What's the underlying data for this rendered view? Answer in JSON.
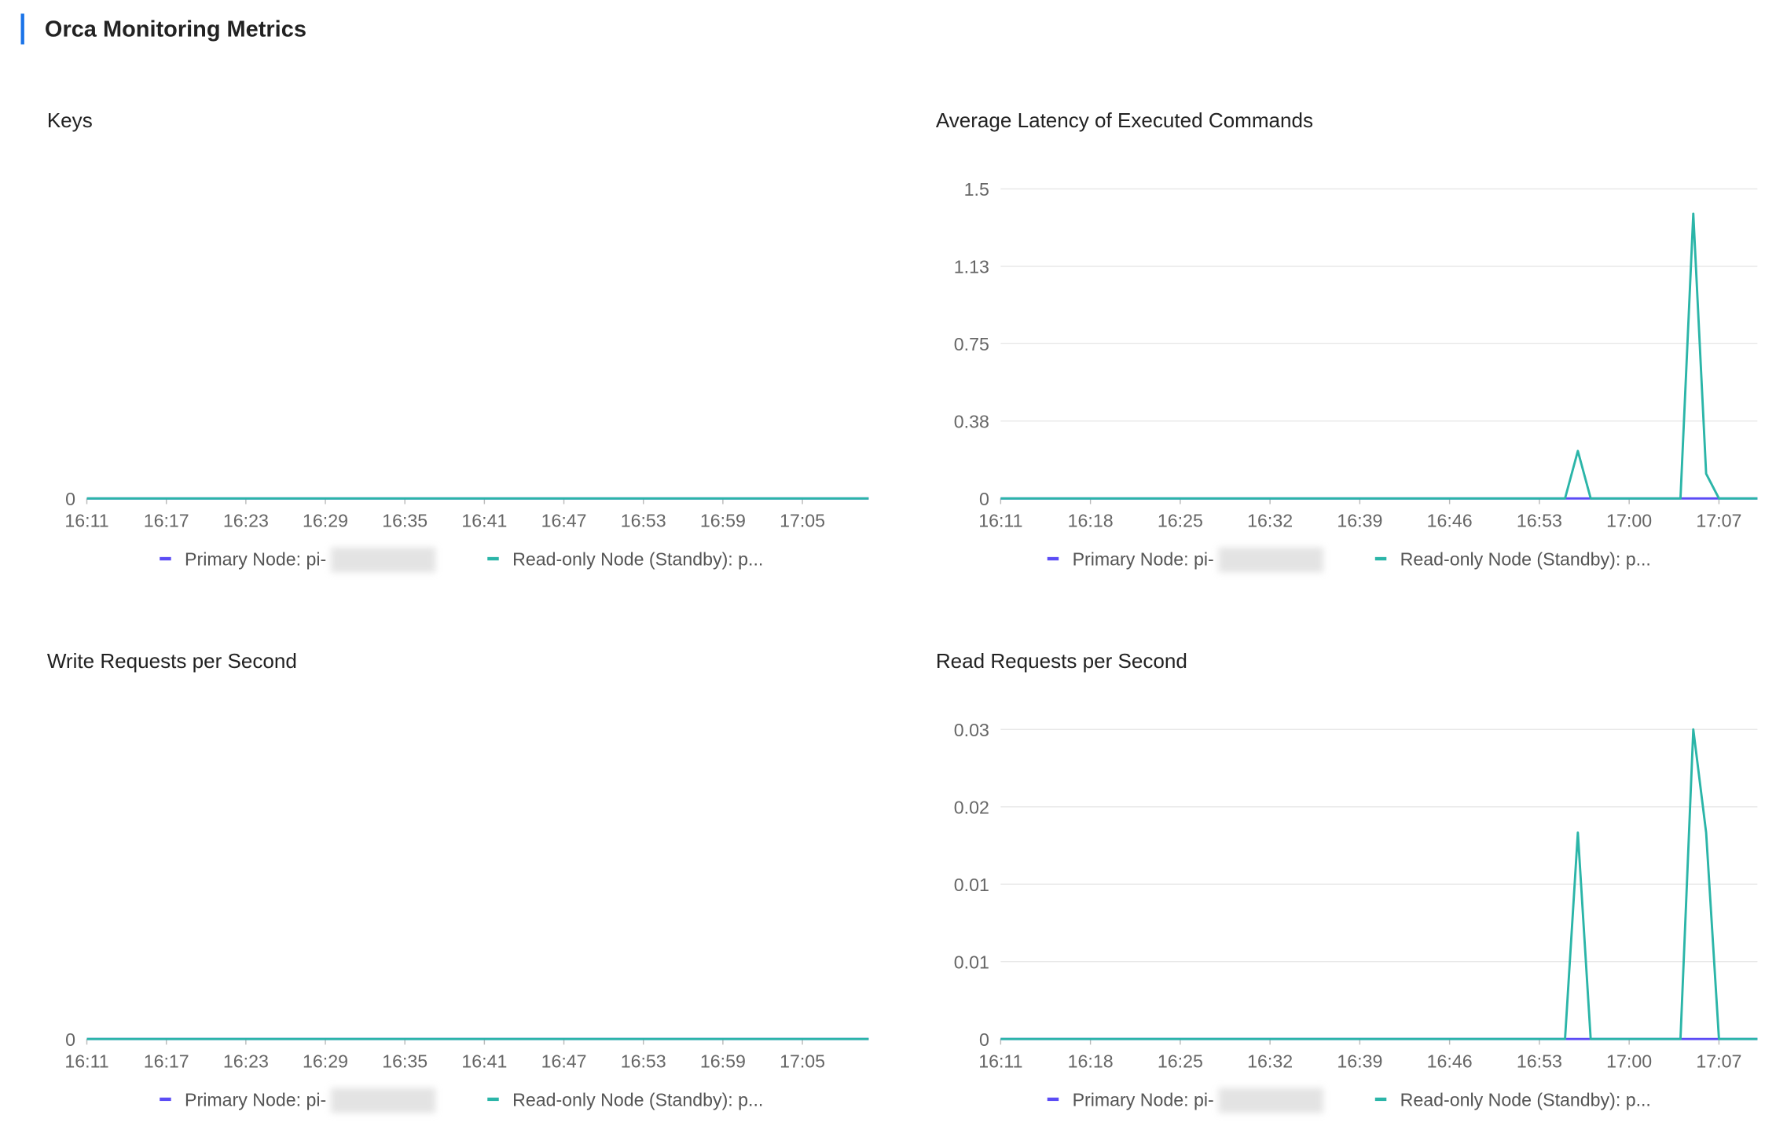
{
  "header": {
    "title": "Orca Monitoring Metrics"
  },
  "chart_data": [
    {
      "type": "line",
      "title": "Keys",
      "x": [
        "16:11",
        "16:12",
        "16:13",
        "16:14",
        "16:15",
        "16:16",
        "16:17",
        "16:18",
        "16:19",
        "16:20",
        "16:21",
        "16:22",
        "16:23",
        "16:24",
        "16:25",
        "16:26",
        "16:27",
        "16:28",
        "16:29",
        "16:30",
        "16:31",
        "16:32",
        "16:33",
        "16:34",
        "16:35",
        "16:36",
        "16:37",
        "16:38",
        "16:39",
        "16:40",
        "16:41",
        "16:42",
        "16:43",
        "16:44",
        "16:45",
        "16:46",
        "16:47",
        "16:48",
        "16:49",
        "16:50",
        "16:51",
        "16:52",
        "16:53",
        "16:54",
        "16:55",
        "16:56",
        "16:57",
        "16:58",
        "16:59",
        "17:00",
        "17:01",
        "17:02",
        "17:03",
        "17:04",
        "17:05",
        "17:06",
        "17:07",
        "17:08",
        "17:09",
        "17:10"
      ],
      "xticks": [
        "16:11",
        "16:17",
        "16:23",
        "16:29",
        "16:35",
        "16:41",
        "16:47",
        "16:53",
        "16:59",
        "17:05"
      ],
      "ylim": [
        0,
        1
      ],
      "yticks": [
        0
      ],
      "grid": false,
      "series": [
        {
          "name": "Primary Node: pi-",
          "color": "#5b4cf5",
          "values": [
            0,
            0,
            0,
            0,
            0,
            0,
            0,
            0,
            0,
            0,
            0,
            0,
            0,
            0,
            0,
            0,
            0,
            0,
            0,
            0,
            0,
            0,
            0,
            0,
            0,
            0,
            0,
            0,
            0,
            0,
            0,
            0,
            0,
            0,
            0,
            0,
            0,
            0,
            0,
            0,
            0,
            0,
            0,
            0,
            0,
            0,
            0,
            0,
            0,
            0,
            0,
            0,
            0,
            0,
            0,
            0,
            0,
            0,
            0,
            0
          ]
        },
        {
          "name": "Read-only Node (Standby): p...",
          "color": "#2bb5a8",
          "values": [
            0,
            0,
            0,
            0,
            0,
            0,
            0,
            0,
            0,
            0,
            0,
            0,
            0,
            0,
            0,
            0,
            0,
            0,
            0,
            0,
            0,
            0,
            0,
            0,
            0,
            0,
            0,
            0,
            0,
            0,
            0,
            0,
            0,
            0,
            0,
            0,
            0,
            0,
            0,
            0,
            0,
            0,
            0,
            0,
            0,
            0,
            0,
            0,
            0,
            0,
            0,
            0,
            0,
            0,
            0,
            0,
            0,
            0,
            0,
            0
          ]
        }
      ]
    },
    {
      "type": "line",
      "title": "Average Latency of Executed Commands",
      "x": [
        "16:11",
        "16:12",
        "16:13",
        "16:14",
        "16:15",
        "16:16",
        "16:17",
        "16:18",
        "16:19",
        "16:20",
        "16:21",
        "16:22",
        "16:23",
        "16:24",
        "16:25",
        "16:26",
        "16:27",
        "16:28",
        "16:29",
        "16:30",
        "16:31",
        "16:32",
        "16:33",
        "16:34",
        "16:35",
        "16:36",
        "16:37",
        "16:38",
        "16:39",
        "16:40",
        "16:41",
        "16:42",
        "16:43",
        "16:44",
        "16:45",
        "16:46",
        "16:47",
        "16:48",
        "16:49",
        "16:50",
        "16:51",
        "16:52",
        "16:53",
        "16:54",
        "16:55",
        "16:56",
        "16:57",
        "16:58",
        "16:59",
        "17:00",
        "17:01",
        "17:02",
        "17:03",
        "17:04",
        "17:05",
        "17:06",
        "17:07",
        "17:08",
        "17:09",
        "17:10"
      ],
      "xticks": [
        "16:11",
        "16:18",
        "16:25",
        "16:32",
        "16:39",
        "16:46",
        "16:53",
        "17:00",
        "17:07"
      ],
      "ylim": [
        0,
        1.5
      ],
      "yticks": [
        0,
        {
          "value": 0.375,
          "label": "0.38"
        },
        0.75,
        {
          "value": 1.125,
          "label": "1.13"
        },
        1.5
      ],
      "grid": true,
      "series": [
        {
          "name": "Primary Node: pi-",
          "color": "#5b4cf5",
          "values": [
            0,
            0,
            0,
            0,
            0,
            0,
            0,
            0,
            0,
            0,
            0,
            0,
            0,
            0,
            0,
            0,
            0,
            0,
            0,
            0,
            0,
            0,
            0,
            0,
            0,
            0,
            0,
            0,
            0,
            0,
            0,
            0,
            0,
            0,
            0,
            0,
            0,
            0,
            0,
            0,
            0,
            0,
            0,
            0,
            0,
            0,
            0,
            0,
            0,
            0,
            0,
            0,
            0,
            0,
            0,
            0,
            0,
            0,
            0,
            0
          ]
        },
        {
          "name": "Read-only Node (Standby): p...",
          "color": "#2bb5a8",
          "values": [
            0,
            0,
            0,
            0,
            0,
            0,
            0,
            0,
            0,
            0,
            0,
            0,
            0,
            0,
            0,
            0,
            0,
            0,
            0,
            0,
            0,
            0,
            0,
            0,
            0,
            0,
            0,
            0,
            0,
            0,
            0,
            0,
            0,
            0,
            0,
            0,
            0,
            0,
            0,
            0,
            0,
            0,
            0,
            0,
            0,
            0.23,
            0,
            0,
            0,
            0,
            0,
            0,
            0,
            0,
            1.38,
            0.12,
            0,
            0,
            0,
            0
          ]
        }
      ]
    },
    {
      "type": "line",
      "title": "Write Requests per Second",
      "x": [
        "16:11",
        "16:12",
        "16:13",
        "16:14",
        "16:15",
        "16:16",
        "16:17",
        "16:18",
        "16:19",
        "16:20",
        "16:21",
        "16:22",
        "16:23",
        "16:24",
        "16:25",
        "16:26",
        "16:27",
        "16:28",
        "16:29",
        "16:30",
        "16:31",
        "16:32",
        "16:33",
        "16:34",
        "16:35",
        "16:36",
        "16:37",
        "16:38",
        "16:39",
        "16:40",
        "16:41",
        "16:42",
        "16:43",
        "16:44",
        "16:45",
        "16:46",
        "16:47",
        "16:48",
        "16:49",
        "16:50",
        "16:51",
        "16:52",
        "16:53",
        "16:54",
        "16:55",
        "16:56",
        "16:57",
        "16:58",
        "16:59",
        "17:00",
        "17:01",
        "17:02",
        "17:03",
        "17:04",
        "17:05",
        "17:06",
        "17:07",
        "17:08",
        "17:09",
        "17:10"
      ],
      "xticks": [
        "16:11",
        "16:17",
        "16:23",
        "16:29",
        "16:35",
        "16:41",
        "16:47",
        "16:53",
        "16:59",
        "17:05"
      ],
      "ylim": [
        0,
        1
      ],
      "yticks": [
        0
      ],
      "grid": false,
      "series": [
        {
          "name": "Primary Node: pi-",
          "color": "#5b4cf5",
          "values": [
            0,
            0,
            0,
            0,
            0,
            0,
            0,
            0,
            0,
            0,
            0,
            0,
            0,
            0,
            0,
            0,
            0,
            0,
            0,
            0,
            0,
            0,
            0,
            0,
            0,
            0,
            0,
            0,
            0,
            0,
            0,
            0,
            0,
            0,
            0,
            0,
            0,
            0,
            0,
            0,
            0,
            0,
            0,
            0,
            0,
            0,
            0,
            0,
            0,
            0,
            0,
            0,
            0,
            0,
            0,
            0,
            0,
            0,
            0,
            0
          ]
        },
        {
          "name": "Read-only Node (Standby): p...",
          "color": "#2bb5a8",
          "values": [
            0,
            0,
            0,
            0,
            0,
            0,
            0,
            0,
            0,
            0,
            0,
            0,
            0,
            0,
            0,
            0,
            0,
            0,
            0,
            0,
            0,
            0,
            0,
            0,
            0,
            0,
            0,
            0,
            0,
            0,
            0,
            0,
            0,
            0,
            0,
            0,
            0,
            0,
            0,
            0,
            0,
            0,
            0,
            0,
            0,
            0,
            0,
            0,
            0,
            0,
            0,
            0,
            0,
            0,
            0,
            0,
            0,
            0,
            0,
            0
          ]
        }
      ]
    },
    {
      "type": "line",
      "title": "Read Requests per Second",
      "x": [
        "16:11",
        "16:12",
        "16:13",
        "16:14",
        "16:15",
        "16:16",
        "16:17",
        "16:18",
        "16:19",
        "16:20",
        "16:21",
        "16:22",
        "16:23",
        "16:24",
        "16:25",
        "16:26",
        "16:27",
        "16:28",
        "16:29",
        "16:30",
        "16:31",
        "16:32",
        "16:33",
        "16:34",
        "16:35",
        "16:36",
        "16:37",
        "16:38",
        "16:39",
        "16:40",
        "16:41",
        "16:42",
        "16:43",
        "16:44",
        "16:45",
        "16:46",
        "16:47",
        "16:48",
        "16:49",
        "16:50",
        "16:51",
        "16:52",
        "16:53",
        "16:54",
        "16:55",
        "16:56",
        "16:57",
        "16:58",
        "16:59",
        "17:00",
        "17:01",
        "17:02",
        "17:03",
        "17:04",
        "17:05",
        "17:06",
        "17:07",
        "17:08",
        "17:09",
        "17:10"
      ],
      "xticks": [
        "16:11",
        "16:18",
        "16:25",
        "16:32",
        "16:39",
        "16:46",
        "16:53",
        "17:00",
        "17:07"
      ],
      "ylim": [
        0,
        0.03
      ],
      "yticks": [
        0,
        {
          "value": 0.0075,
          "label": "0.01"
        },
        {
          "value": 0.015,
          "label": "0.01"
        },
        {
          "value": 0.0225,
          "label": "0.02"
        },
        0.03
      ],
      "grid": true,
      "series": [
        {
          "name": "Primary Node: pi-",
          "color": "#5b4cf5",
          "values": [
            0,
            0,
            0,
            0,
            0,
            0,
            0,
            0,
            0,
            0,
            0,
            0,
            0,
            0,
            0,
            0,
            0,
            0,
            0,
            0,
            0,
            0,
            0,
            0,
            0,
            0,
            0,
            0,
            0,
            0,
            0,
            0,
            0,
            0,
            0,
            0,
            0,
            0,
            0,
            0,
            0,
            0,
            0,
            0,
            0,
            0,
            0,
            0,
            0,
            0,
            0,
            0,
            0,
            0,
            0,
            0,
            0,
            0,
            0,
            0
          ]
        },
        {
          "name": "Read-only Node (Standby): p...",
          "color": "#2bb5a8",
          "values": [
            0,
            0,
            0,
            0,
            0,
            0,
            0,
            0,
            0,
            0,
            0,
            0,
            0,
            0,
            0,
            0,
            0,
            0,
            0,
            0,
            0,
            0,
            0,
            0,
            0,
            0,
            0,
            0,
            0,
            0,
            0,
            0,
            0,
            0,
            0,
            0,
            0,
            0,
            0,
            0,
            0,
            0,
            0,
            0,
            0,
            0.02,
            0,
            0,
            0,
            0,
            0,
            0,
            0,
            0,
            0.03,
            0.02,
            0,
            0,
            0,
            0
          ]
        }
      ]
    }
  ]
}
